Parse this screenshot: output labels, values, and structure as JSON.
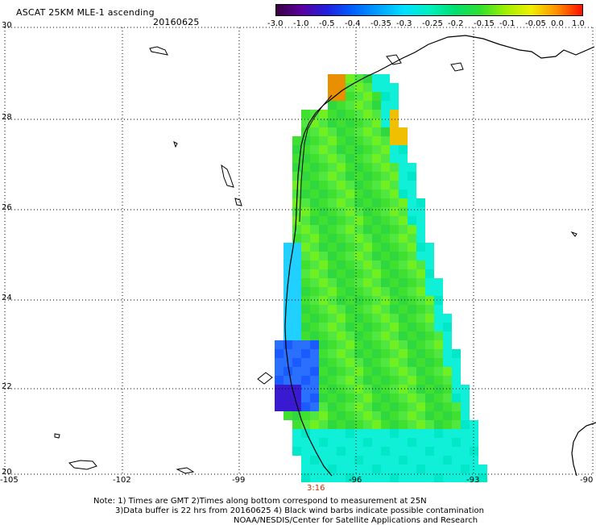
{
  "header": {
    "title": "ASCAT 25KM MLE-1 ascending",
    "date": "20160625"
  },
  "colorbar": {
    "labels": [
      "-3.0",
      "-1.0",
      "-0.5",
      "-0.4",
      "-0.35",
      "-0.3",
      "-0.25",
      "-0.2",
      "-0.15",
      "-0.1",
      "-0.05",
      "0.0",
      "1.0"
    ],
    "colors": [
      "#3a0040",
      "#5a00a0",
      "#2020e0",
      "#0060ff",
      "#00a0ff",
      "#00e0ff",
      "#00f0c0",
      "#00e070",
      "#30e030",
      "#a0f000",
      "#f0f000",
      "#ff9000",
      "#ff1000"
    ]
  },
  "map": {
    "lat_labels": [
      "30",
      "28",
      "26",
      "24",
      "22",
      "20"
    ],
    "lon_labels": [
      "-105",
      "-102",
      "-99",
      "-96",
      "-93",
      "-90"
    ],
    "time_label": "3:16",
    "time_color": "#d03000"
  },
  "footer": {
    "line1": "Note: 1) Times are GMT 2)Times along bottom correspond to measurement at 25N",
    "line2": "3)Data buffer is 22 hrs from 20160625 4) Black wind barbs indicate possible contamination",
    "line3": "NOAA/NESDIS/Center for Satellite Applications and Research"
  }
}
